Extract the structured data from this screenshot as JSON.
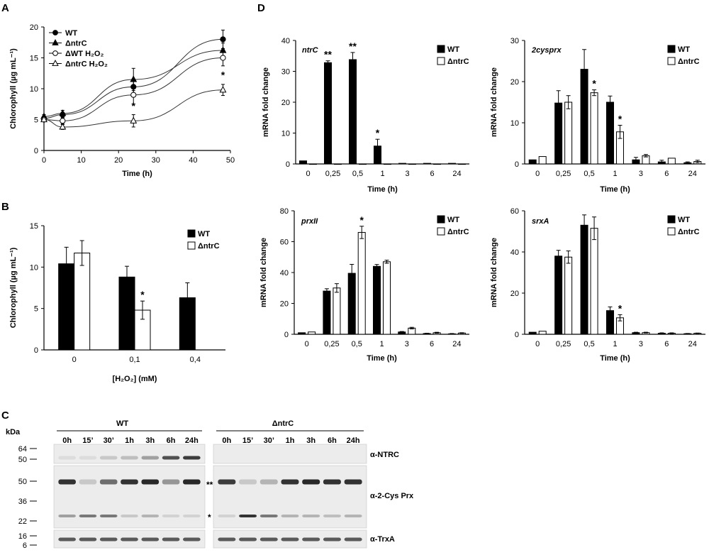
{
  "panels": {
    "A": "A",
    "B": "B",
    "C": "C",
    "D": "D"
  },
  "chart_data": [
    {
      "id": "A",
      "type": "line",
      "title": "",
      "xlabel": "Time (h)",
      "ylabel": "Chlorophyll (µg mL⁻¹)",
      "xlim": [
        0,
        50
      ],
      "ylim": [
        0,
        20
      ],
      "xticks": [
        "0",
        "10",
        "20",
        "30",
        "40",
        "50"
      ],
      "yticks": [
        "0",
        "5",
        "10",
        "15",
        "20"
      ],
      "x": [
        0,
        5,
        24,
        48
      ],
      "legend_position": "top-left",
      "series": [
        {
          "name": "WT",
          "marker": "filled-circle",
          "values": [
            5.2,
            5.8,
            10.3,
            18.0
          ],
          "err": [
            0.3,
            0.4,
            1.0,
            1.5
          ]
        },
        {
          "name": "ΔntrC",
          "marker": "filled-triangle",
          "values": [
            5.5,
            6.0,
            11.5,
            16.2
          ],
          "err": [
            0.3,
            0.5,
            1.8,
            1.2
          ]
        },
        {
          "name": "ΔWT H₂O₂",
          "marker": "open-circle",
          "values": [
            5.0,
            4.8,
            9.0,
            15.0
          ],
          "err": [
            0.3,
            0.5,
            1.5,
            1.3
          ]
        },
        {
          "name": "ΔntrC H₂O₂",
          "marker": "open-triangle",
          "values": [
            5.0,
            3.8,
            4.8,
            9.8
          ],
          "err": [
            0.3,
            0.4,
            1.0,
            0.9
          ]
        }
      ],
      "annotations": [
        {
          "x": 24,
          "text": "*"
        },
        {
          "x": 48,
          "text": "*"
        }
      ]
    },
    {
      "id": "B",
      "type": "bar",
      "xlabel": "[H₂O₂] (mM)",
      "ylabel": "Chlorophyll (µg mL⁻¹)",
      "ylim": [
        0,
        15
      ],
      "yticks": [
        "0",
        "5",
        "10",
        "15"
      ],
      "categories": [
        "0",
        "0,1",
        "0,4"
      ],
      "legend_position": "top-right",
      "series": [
        {
          "name": "WT",
          "fill": "black",
          "values": [
            10.4,
            8.8,
            6.3
          ],
          "err": [
            2.0,
            1.3,
            1.8
          ]
        },
        {
          "name": "ΔntrC",
          "fill": "white",
          "values": [
            11.7,
            4.8,
            null
          ],
          "err": [
            1.5,
            1.1,
            null
          ]
        }
      ],
      "annotations": [
        {
          "category": "0,1",
          "series": "ΔntrC",
          "text": "*"
        }
      ]
    },
    {
      "id": "D-ntrC",
      "type": "bar",
      "gene": "ntrC",
      "xlabel": "Time (h)",
      "ylabel": "mRNA fold change",
      "ylim": [
        0,
        40
      ],
      "yticks": [
        "0",
        "10",
        "20",
        "30",
        "40"
      ],
      "categories": [
        "0",
        "0,25",
        "0,5",
        "1",
        "3",
        "6",
        "24"
      ],
      "legend_position": "top-right",
      "series": [
        {
          "name": "WT",
          "values": [
            1,
            32.8,
            33.8,
            5.8,
            0.2,
            0.2,
            0.2
          ],
          "err": [
            0,
            0.6,
            2.3,
            2.2,
            0,
            0,
            0
          ]
        },
        {
          "name": "ΔntrC",
          "values": [
            0,
            0,
            0,
            0,
            0,
            0,
            0
          ],
          "err": [
            0,
            0,
            0,
            0,
            0,
            0,
            0
          ]
        }
      ],
      "annotations": [
        {
          "category": "0,25",
          "text": "**"
        },
        {
          "category": "0,5",
          "text": "**"
        },
        {
          "category": "1",
          "text": "*"
        }
      ]
    },
    {
      "id": "D-2cysprx",
      "type": "bar",
      "gene": "2cysprx",
      "xlabel": "Time (h)",
      "ylabel": "mRNA fold change",
      "ylim": [
        0,
        30
      ],
      "yticks": [
        "0",
        "10",
        "20",
        "30"
      ],
      "categories": [
        "0",
        "0,25",
        "0,5",
        "1",
        "3",
        "6",
        "24"
      ],
      "legend_position": "top-right",
      "series": [
        {
          "name": "WT",
          "values": [
            1,
            14.8,
            23.0,
            15.0,
            1.0,
            0.5,
            0.3
          ],
          "err": [
            0,
            3.0,
            4.8,
            1.5,
            0.6,
            0.4,
            0.2
          ]
        },
        {
          "name": "ΔntrC",
          "values": [
            1.8,
            15.0,
            17.3,
            7.8,
            2.0,
            1.4,
            0.6
          ],
          "err": [
            0,
            1.6,
            0.7,
            1.6,
            0.3,
            0,
            0.3
          ]
        }
      ],
      "annotations": [
        {
          "category": "0,5",
          "series": "ΔntrC",
          "text": "*"
        },
        {
          "category": "1",
          "series": "ΔntrC",
          "text": "*"
        }
      ]
    },
    {
      "id": "D-prxII",
      "type": "bar",
      "gene": "prxII",
      "xlabel": "Time (h)",
      "ylabel": "mRNA fold change",
      "ylim": [
        0,
        80
      ],
      "yticks": [
        "0",
        "20",
        "40",
        "60",
        "80"
      ],
      "categories": [
        "0",
        "0,25",
        "0,5",
        "1",
        "3",
        "6",
        "24"
      ],
      "legend_position": "top-right",
      "series": [
        {
          "name": "WT",
          "values": [
            1,
            28.0,
            39.5,
            44.0,
            1.5,
            0.5,
            0.3
          ],
          "err": [
            0,
            1.5,
            5.8,
            1.2,
            0.3,
            0.2,
            0.2
          ]
        },
        {
          "name": "ΔntrC",
          "values": [
            1.5,
            30.0,
            66.0,
            47.0,
            4.0,
            1.0,
            0.8
          ],
          "err": [
            0,
            2.8,
            4.0,
            1.0,
            0.5,
            0.3,
            0.2
          ]
        }
      ],
      "annotations": [
        {
          "category": "0,5",
          "series": "ΔntrC",
          "text": "*"
        }
      ]
    },
    {
      "id": "D-srxA",
      "type": "bar",
      "gene": "srxA",
      "xlabel": "Time (h)",
      "ylabel": "mRNA fold change",
      "ylim": [
        0,
        60
      ],
      "yticks": [
        "0",
        "20",
        "40",
        "60"
      ],
      "categories": [
        "0",
        "0,25",
        "0,5",
        "1",
        "3",
        "6",
        "24"
      ],
      "legend_position": "top-right",
      "series": [
        {
          "name": "WT",
          "values": [
            1,
            38.0,
            53.0,
            11.5,
            0.8,
            0.5,
            0.3
          ],
          "err": [
            0,
            2.8,
            5.0,
            1.8,
            0.2,
            0.2,
            0.1
          ]
        },
        {
          "name": "ΔntrC",
          "values": [
            1.5,
            37.5,
            51.5,
            8.0,
            0.8,
            0.5,
            0.5
          ],
          "err": [
            0,
            3.0,
            5.5,
            1.5,
            0.2,
            0.2,
            0.1
          ]
        }
      ],
      "annotations": [
        {
          "category": "1",
          "series": "ΔntrC",
          "text": "*"
        }
      ]
    }
  ],
  "blot": {
    "kda_label": "kDa",
    "kda_markers": [
      "64",
      "50",
      "50",
      "36",
      "22",
      "16",
      "6"
    ],
    "groups": [
      "WT",
      "ΔntrC"
    ],
    "lanes": [
      "0h",
      "15’",
      "30’",
      "1h",
      "3h",
      "6h",
      "24h"
    ],
    "antibodies": [
      "α-NTRC",
      "α-2-Cys Prx",
      "α-TrxA"
    ],
    "marks": {
      "dimer": "**",
      "monomer": "*"
    },
    "ntrc_intensity": {
      "WT": [
        0.05,
        0.05,
        0.15,
        0.2,
        0.35,
        0.75,
        0.85
      ],
      "ΔntrC": [
        0,
        0,
        0,
        0,
        0,
        0,
        0
      ]
    },
    "prx_dimer_intensity": {
      "WT": [
        0.9,
        0.15,
        0.6,
        0.9,
        0.95,
        0.4,
        0.95
      ],
      "ΔntrC": [
        0.85,
        0.15,
        0.25,
        0.9,
        0.95,
        0.9,
        0.9
      ]
    },
    "prx_monomer_intensity": {
      "WT": [
        0.35,
        0.55,
        0.55,
        0.15,
        0.25,
        0.1,
        0.1
      ],
      "ΔntrC": [
        0.1,
        0.9,
        0.55,
        0.25,
        0.25,
        0.2,
        0.25
      ]
    },
    "trxa_intensity": {
      "WT": [
        0.7,
        0.7,
        0.7,
        0.7,
        0.7,
        0.7,
        0.7
      ],
      "ΔntrC": [
        0.7,
        0.7,
        0.7,
        0.7,
        0.7,
        0.7,
        0.7
      ]
    }
  }
}
